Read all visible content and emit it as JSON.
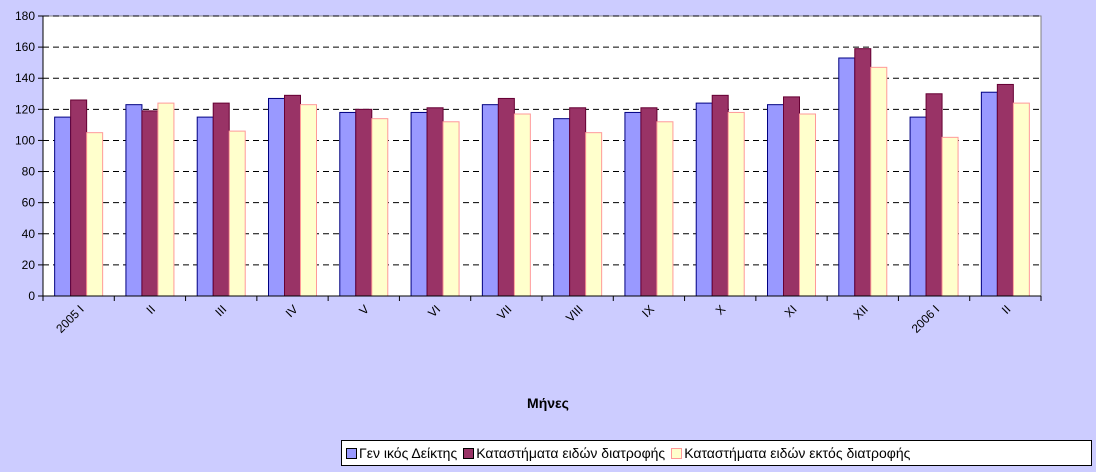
{
  "chart_data": {
    "type": "bar",
    "categories": [
      "2005 I",
      "II",
      "III",
      "IV",
      "V",
      "VI",
      "VII",
      "VIII",
      "IX",
      "X",
      "XI",
      "XII",
      "2006 I",
      "II"
    ],
    "series": [
      {
        "name": "Γεν ικός Δείκτης",
        "color": "#9999FF",
        "values": [
          115,
          123,
          115,
          127,
          118,
          118,
          123,
          114,
          118,
          124,
          123,
          153,
          115,
          131
        ]
      },
      {
        "name": "Καταστήματα ειδών  διατροφής",
        "color": "#993366",
        "values": [
          126,
          119,
          124,
          129,
          120,
          121,
          127,
          121,
          121,
          129,
          128,
          159,
          130,
          136
        ]
      },
      {
        "name": "Καταστήματα ειδών   εκτός διατροφής",
        "color": "#FFFFCC",
        "values": [
          105,
          124,
          106,
          123,
          114,
          112,
          117,
          105,
          112,
          118,
          117,
          147,
          102,
          124
        ]
      }
    ],
    "xlabel": "Μήνες",
    "ylabel": "",
    "ylim": [
      0,
      180
    ],
    "yticks": [
      0,
      20,
      40,
      60,
      80,
      100,
      120,
      140,
      160,
      180
    ],
    "grid": true,
    "legend_position": "bottom-right",
    "plot_background": "#FFFFFF",
    "page_background": "#CCCCFF"
  }
}
